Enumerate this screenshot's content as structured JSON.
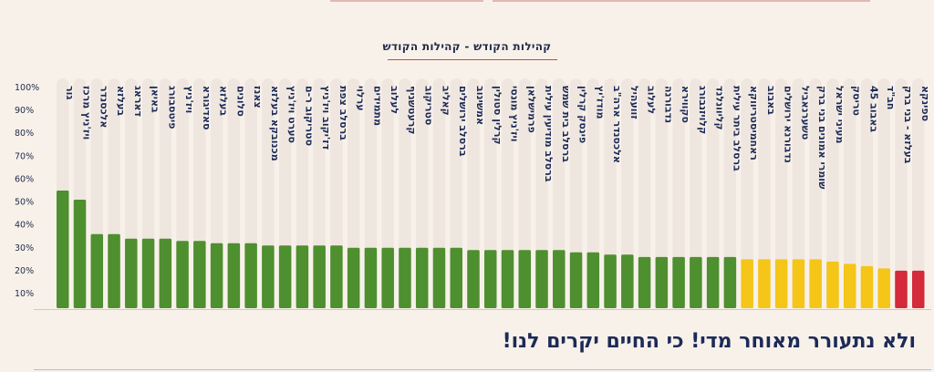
{
  "chart_data": {
    "type": "bar",
    "title": "קהילות הקודש - קהילות הקודש",
    "ylim": [
      0,
      100
    ],
    "y_ticks": [
      "10%",
      "20%",
      "30%",
      "40%",
      "50%",
      "60%",
      "70%",
      "80%",
      "90%",
      "100%"
    ],
    "grid": false,
    "legend": "none",
    "categories": [
      "גור",
      "ויז'ניץ מרכז",
      "אלכסנדר",
      "בעלזא",
      "דאראג",
      "באיאן",
      "פיטסבורג",
      "ויז'ניץ",
      "סאדיגורא",
      "בעלזא",
      "סלונים",
      "צאנז",
      "מכנובקא בעלזא",
      "סערט ויז'ניץ",
      "סטריקוב ר-ם",
      "דז'יקוב ויז'ניץ",
      "ברסלב צפת",
      "ערלוי",
      "מתמידים",
      "לעלוב",
      "קרעטשניף",
      "סטריקוב",
      "קאליב",
      "ברסלב ירושלים",
      "אמשינוב",
      "קרלין סטולין",
      "ויז'ניץ מונסי",
      "פרמישלאן",
      "ברסלב מודיעין עילית",
      "ברסלב בית שמש",
      "פינסק קרלין",
      "מודז'יץ",
      "אלכסנדר ארה\"ב",
      "זוועהיל",
      "לעלוב",
      "נדבורנה",
      "סקווירא",
      "קלויזנבורג",
      "קליוונלנד",
      "ברסלב ביתר עילית",
      "ראחמיסטריווקא",
      "באבוב",
      "נדבורנא ירושלים",
      "טשערנאביל",
      "שומרי אמונים בני ברק",
      "מעיני ישראל",
      "טריסק",
      "באבוב 45",
      "חב\"ד",
      "בעלזא - בני ברק",
      "ספינקא"
    ],
    "values": [
      55,
      51,
      36,
      36,
      34,
      34,
      34,
      33,
      33,
      32,
      32,
      32,
      31,
      31,
      31,
      31,
      31,
      30,
      30,
      30,
      30,
      30,
      30,
      30,
      29,
      29,
      29,
      29,
      29,
      29,
      28,
      28,
      27,
      27,
      26,
      26,
      26,
      26,
      26,
      26,
      25,
      25,
      25,
      25,
      25,
      24,
      23,
      22,
      21,
      20,
      20
    ],
    "colors": {
      "green": "#4e8f2f",
      "yellow": "#f5c518",
      "red": "#d42a3a",
      "track": "#efe7df",
      "tick": "#1f2a4a",
      "label": "#1c2a57"
    },
    "color_rule": {
      "green_from": 26,
      "yellow_from": 21
    }
  },
  "footer": {
    "text": "ולא נתעורר מאוחר מדי! כי החיים יקרים לנו!"
  }
}
